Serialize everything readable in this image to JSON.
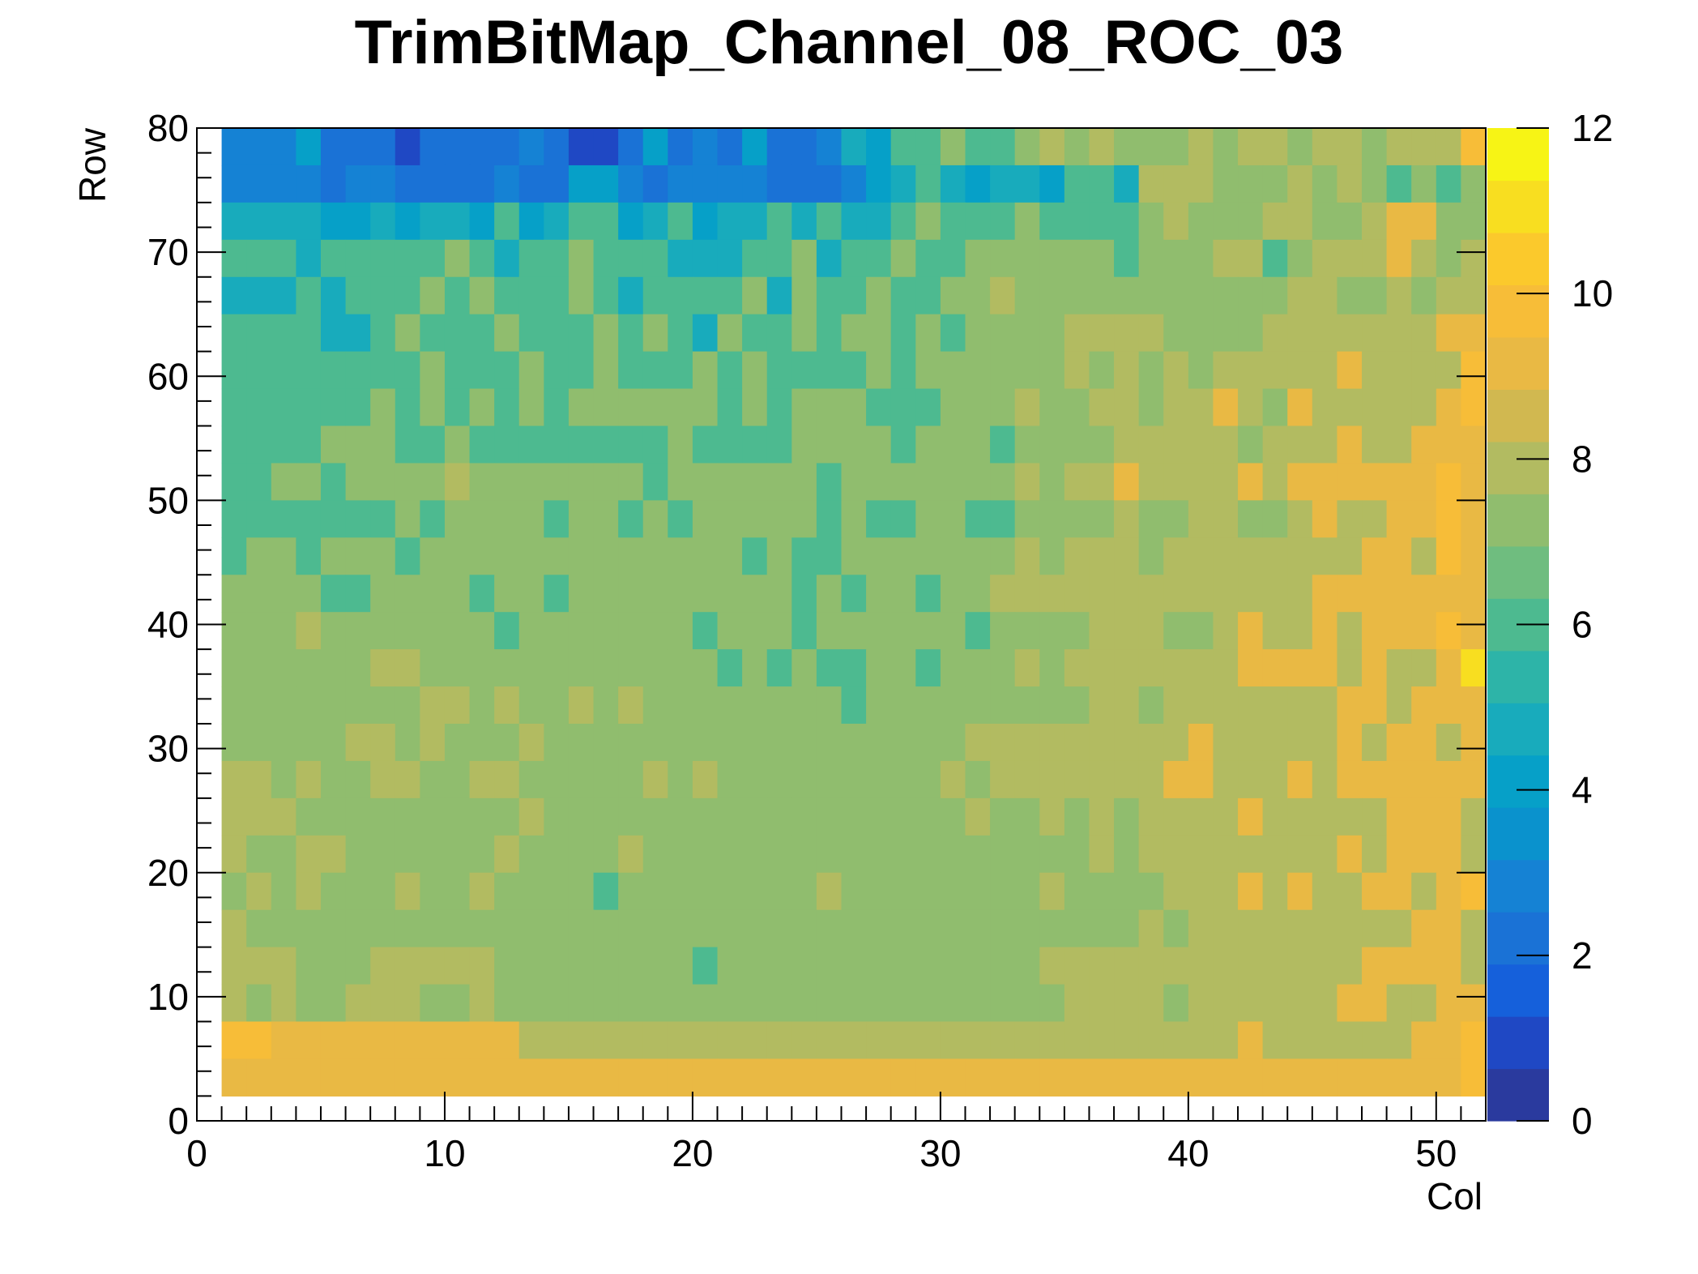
{
  "chart_data": {
    "type": "heatmap",
    "title": "TrimBitMap_Channel_08_ROC_03",
    "xlabel": "Col",
    "ylabel": "Row",
    "xlim": [
      0,
      52
    ],
    "ylim": [
      0,
      80
    ],
    "zlim": [
      0,
      12
    ],
    "x_ticks": [
      0,
      10,
      20,
      30,
      40,
      50
    ],
    "y_ticks": [
      0,
      10,
      20,
      30,
      40,
      50,
      60,
      70,
      80
    ],
    "z_ticks": [
      0,
      2,
      4,
      6,
      8,
      10,
      12
    ],
    "palette": [
      "#2a3a9e",
      "#1f48c4",
      "#1560db",
      "#1a72d6",
      "#1582d4",
      "#0a92cd",
      "#06a0c8",
      "#18abbc",
      "#2db4a8",
      "#4dba90",
      "#6fbd7f",
      "#90bd6e",
      "#b2bb61",
      "#d1b850",
      "#e9b944",
      "#f7bd38",
      "#fbc92c",
      "#f8de20",
      "#f7f415"
    ],
    "cells": [
      "33342221222232112423242235466766787877787887887888A7",
      "3333233222232244323333222345654554665888777878767678",
      "5555445455464566456455656556766676666787778877899778",
      "6665666667656676665556675667667777776777886788898789",
      "5556566676766676566667576676677877777777777887787889",
      "666655676667666767657667677676777788887777888888899A",
      "66666666766676676667676666767777778787878888898888A9",
      "66666676767676777777676777666777877887889879888889AA",
      "6666777667666666667666677776777677778888878889889999",
      "6677677778777777767777776777777787889888898999999A98",
      "6666666767777677676777776766776677778778877898899A99",
      "6776777677777777777776766777777787888788888888998A98",
      "7777667777677677777777767677677888888888888899999999",
      "7778777777767777777677767777776777788877898898999A98",
      "77777788777777777777676766776777878888888999989889B8",
      "7777777788787787877777777677777777788788888889989999",
      "777778878777877777777777777777888888888988888989989A",
      "8878778877887777787877777777787888888899888989999999",
      "8887777777778777777777777777778778787888898888899989",
      "8778877777787777877777777777777777787888888889899988",
      "78787778778777767777777787777777787777888989889989A9",
      "8777777777777777777777777777777777777878888888889989",
      "8887778888877777777677777777777778888888888888999989",
      "8787788877877777777777777777777777888878888889988999",
      "AA999999999988888888888888888888888888888988888899A9",
      "99999999999999999999999999999999999999999999999999A9"
    ]
  }
}
